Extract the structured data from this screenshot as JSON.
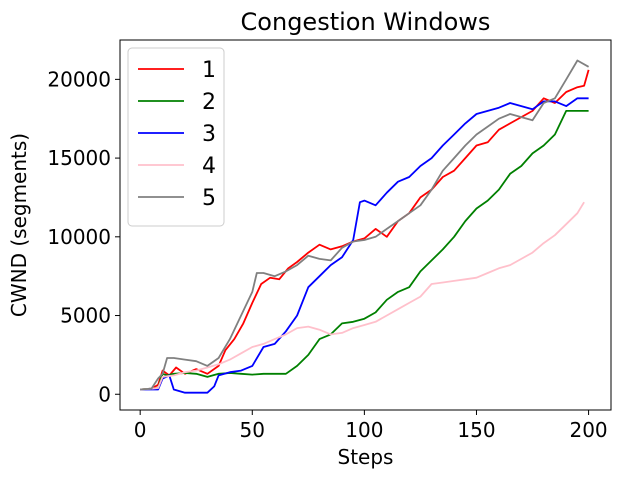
{
  "chart_data": {
    "type": "line",
    "title": "Congestion Windows",
    "xlabel": "Steps",
    "ylabel": "CWND (segments)",
    "xlim": [
      -9,
      210
    ],
    "ylim": [
      -1000,
      22500
    ],
    "xticks": [
      0,
      50,
      100,
      150,
      200
    ],
    "yticks": [
      0,
      5000,
      10000,
      15000,
      20000
    ],
    "grid": false,
    "legend_position": "top-left",
    "series": [
      {
        "name": "1",
        "color": "#ff0000",
        "x": [
          0,
          5,
          8,
          10,
          13,
          16,
          20,
          25,
          30,
          35,
          38,
          42,
          46,
          50,
          54,
          58,
          62,
          66,
          70,
          75,
          80,
          85,
          90,
          95,
          100,
          105,
          110,
          115,
          120,
          125,
          130,
          135,
          140,
          145,
          150,
          155,
          160,
          165,
          170,
          175,
          180,
          185,
          190,
          195,
          198,
          200
        ],
        "y": [
          300,
          350,
          600,
          1500,
          1200,
          1700,
          1300,
          1600,
          1300,
          1800,
          2800,
          3500,
          4500,
          5800,
          7000,
          7400,
          7300,
          8000,
          8400,
          9000,
          9500,
          9200,
          9400,
          9700,
          9900,
          10500,
          10000,
          11000,
          11500,
          12500,
          13000,
          13800,
          14200,
          15000,
          15800,
          16000,
          16800,
          17200,
          17600,
          18000,
          18800,
          18500,
          19200,
          19500,
          19600,
          20600
        ]
      },
      {
        "name": "2",
        "color": "#008000",
        "x": [
          0,
          5,
          8,
          10,
          12,
          15,
          20,
          25,
          30,
          35,
          40,
          45,
          50,
          55,
          60,
          65,
          70,
          75,
          80,
          85,
          90,
          95,
          100,
          105,
          110,
          115,
          120,
          125,
          130,
          135,
          140,
          145,
          150,
          155,
          160,
          165,
          170,
          175,
          180,
          185,
          190,
          195,
          200
        ],
        "y": [
          300,
          350,
          400,
          1300,
          1200,
          1300,
          1350,
          1300,
          1100,
          1300,
          1350,
          1300,
          1250,
          1300,
          1300,
          1300,
          1800,
          2500,
          3500,
          3800,
          4500,
          4600,
          4800,
          5200,
          6000,
          6500,
          6800,
          7800,
          8500,
          9200,
          10000,
          11000,
          11800,
          12300,
          13000,
          14000,
          14500,
          15300,
          15800,
          16500,
          18000,
          18000,
          18000
        ]
      },
      {
        "name": "3",
        "color": "#0000ff",
        "x": [
          0,
          5,
          8,
          10,
          13,
          15,
          20,
          25,
          30,
          33,
          35,
          40,
          45,
          50,
          55,
          60,
          65,
          70,
          75,
          80,
          85,
          90,
          95,
          98,
          100,
          105,
          110,
          115,
          120,
          125,
          130,
          135,
          140,
          145,
          150,
          155,
          160,
          165,
          170,
          175,
          180,
          185,
          190,
          195,
          200
        ],
        "y": [
          300,
          300,
          300,
          1000,
          1200,
          300,
          100,
          100,
          100,
          500,
          1200,
          1400,
          1500,
          1800,
          3000,
          3200,
          4000,
          5000,
          6800,
          7500,
          8200,
          8700,
          9800,
          12200,
          12300,
          12000,
          12800,
          13500,
          13800,
          14500,
          15000,
          15800,
          16500,
          17200,
          17800,
          18000,
          18200,
          18500,
          18300,
          18100,
          18600,
          18600,
          18300,
          18800,
          18800
        ]
      },
      {
        "name": "4",
        "color": "#ffc0cb",
        "x": [
          0,
          5,
          8,
          10,
          15,
          20,
          25,
          30,
          35,
          40,
          45,
          50,
          55,
          60,
          65,
          70,
          75,
          80,
          85,
          90,
          95,
          100,
          105,
          110,
          115,
          120,
          125,
          130,
          135,
          140,
          145,
          150,
          155,
          160,
          165,
          170,
          175,
          180,
          185,
          190,
          195,
          198
        ],
        "y": [
          300,
          350,
          400,
          1100,
          1200,
          1400,
          1500,
          1700,
          1900,
          2200,
          2600,
          3000,
          3200,
          3500,
          3800,
          4200,
          4300,
          4100,
          3800,
          3900,
          4200,
          4400,
          4600,
          5000,
          5400,
          5800,
          6200,
          7000,
          7100,
          7200,
          7300,
          7400,
          7700,
          8000,
          8200,
          8600,
          9000,
          9600,
          10100,
          10800,
          11500,
          12200
        ]
      },
      {
        "name": "5",
        "color": "#808080",
        "x": [
          0,
          5,
          8,
          10,
          12,
          15,
          20,
          25,
          30,
          35,
          40,
          45,
          50,
          52,
          55,
          60,
          65,
          70,
          75,
          80,
          85,
          90,
          95,
          100,
          105,
          110,
          115,
          120,
          125,
          130,
          135,
          140,
          145,
          150,
          155,
          160,
          165,
          170,
          175,
          180,
          185,
          190,
          195,
          200
        ],
        "y": [
          300,
          350,
          1000,
          1300,
          2300,
          2300,
          2200,
          2100,
          1800,
          2300,
          3500,
          5000,
          6500,
          7700,
          7700,
          7500,
          7800,
          8200,
          8800,
          8600,
          8500,
          9300,
          9700,
          9800,
          10000,
          10500,
          11000,
          11500,
          12000,
          13000,
          14200,
          15000,
          15800,
          16500,
          17000,
          17500,
          17800,
          17600,
          17400,
          18500,
          18800,
          20000,
          21200,
          20800
        ]
      }
    ]
  }
}
